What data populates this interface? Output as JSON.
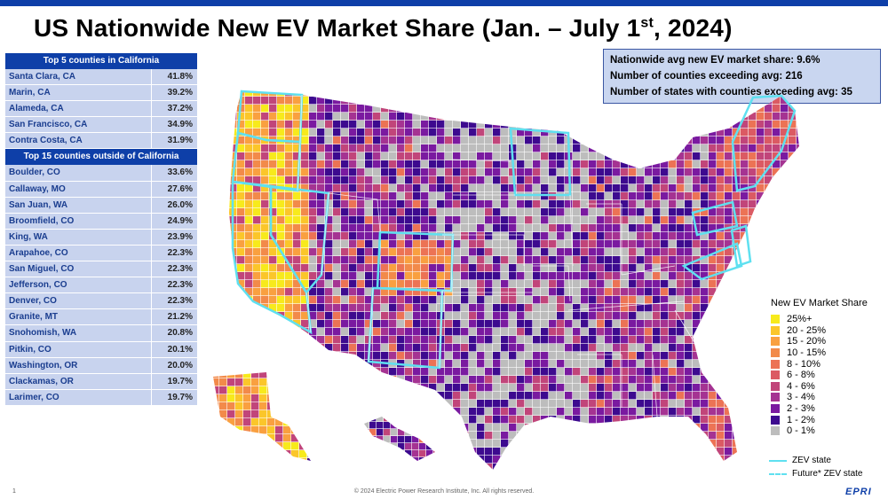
{
  "title": {
    "main": "US Nationwide New EV Market Share (Jan. – July 1",
    "sup": "st",
    "end": ", 2024)"
  },
  "ca_table": {
    "header": "Top 5 counties in California",
    "rows": [
      {
        "county": "Santa Clara, CA",
        "share": "41.8%"
      },
      {
        "county": "Marin, CA",
        "share": "39.2%"
      },
      {
        "county": "Alameda, CA",
        "share": "37.2%"
      },
      {
        "county": "San Francisco, CA",
        "share": "34.9%"
      },
      {
        "county": "Contra Costa, CA",
        "share": "31.9%"
      }
    ]
  },
  "other_table": {
    "header": "Top 15  counties outside of California",
    "rows": [
      {
        "county": "Boulder, CO",
        "share": "33.6%"
      },
      {
        "county": "Callaway, MO",
        "share": "27.6%"
      },
      {
        "county": "San Juan, WA",
        "share": "26.0%"
      },
      {
        "county": "Broomfield, CO",
        "share": "24.9%"
      },
      {
        "county": "King, WA",
        "share": "23.9%"
      },
      {
        "county": "Arapahoe, CO",
        "share": "22.3%"
      },
      {
        "county": "San Miguel, CO",
        "share": "22.3%"
      },
      {
        "county": "Jefferson, CO",
        "share": "22.3%"
      },
      {
        "county": "Denver, CO",
        "share": "22.3%"
      },
      {
        "county": "Granite, MT",
        "share": "21.2%"
      },
      {
        "county": "Snohomish, WA",
        "share": "20.8%"
      },
      {
        "county": "Pitkin, CO",
        "share": "20.1%"
      },
      {
        "county": "Washington, OR",
        "share": "20.0%"
      },
      {
        "county": "Clackamas, OR",
        "share": "19.7%"
      },
      {
        "county": "Larimer, CO",
        "share": "19.7%"
      }
    ]
  },
  "stats": {
    "line1": "Nationwide avg new EV market share: 9.6%",
    "line2": "Number of counties exceeding avg: 216",
    "line3": "Number of states with counties exceeding avg: 35"
  },
  "legend": {
    "title": "New EV Market Share",
    "items": [
      {
        "label": "25%+",
        "color": "#f7ea1c"
      },
      {
        "label": "20 - 25%",
        "color": "#fbc62a"
      },
      {
        "label": "15 - 20%",
        "color": "#f9a040"
      },
      {
        "label": "10 - 15%",
        "color": "#f28a4a"
      },
      {
        "label": "8 - 10%",
        "color": "#ec7355"
      },
      {
        "label": "6 - 8%",
        "color": "#db5a63"
      },
      {
        "label": "4 - 6%",
        "color": "#c1457a"
      },
      {
        "label": "3 - 4%",
        "color": "#a53392"
      },
      {
        "label": "2 - 3%",
        "color": "#7a1aa0"
      },
      {
        "label": "1 - 2%",
        "color": "#3d0a8f"
      },
      {
        "label": "0 - 1%",
        "color": "#bdbdbd"
      }
    ],
    "zev_label": "ZEV state",
    "future_label": "Future* ZEV state",
    "zev_color": "#5fe0f0"
  },
  "footer": {
    "page": "1",
    "copyright": "© 2024 Electric Power Research Institute, Inc. All rights reserved.",
    "logo": "EPRI"
  }
}
